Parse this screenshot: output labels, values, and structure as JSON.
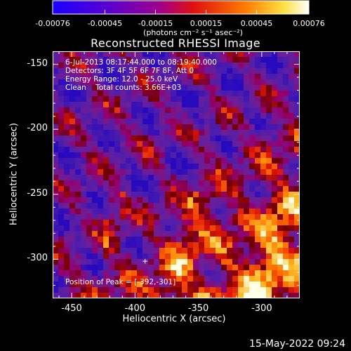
{
  "colorbar": {
    "ticks": [
      "-0.00076",
      "-0.00045",
      "-0.00015",
      "0.00015",
      "0.00045",
      "0.00076"
    ],
    "unit": "(photons cm⁻² s⁻¹ asec⁻²)",
    "colors": [
      "#1a00ff",
      "#6a00c8",
      "#a0008a",
      "#e01010",
      "#ff7a00",
      "#ffe040",
      "#ffffff"
    ]
  },
  "chart_data": {
    "type": "heatmap",
    "title": "Reconstructed RHESSI Image",
    "xlabel": "Heliocentric X (arcsec)",
    "ylabel": "Heliocentric Y (arcsec)",
    "xlim": [
      -465,
      -270
    ],
    "ylim": [
      -330,
      -140
    ],
    "xticks": [
      -450,
      -400,
      -350,
      -300
    ],
    "yticks": [
      -150,
      -200,
      -250,
      -300
    ],
    "zlim": [
      -0.00076,
      0.00076
    ],
    "peak": [
      -392,
      -301
    ],
    "annotations": [
      "6-Jul-2013 08:17:44.000 to 08:19:40.000",
      "Detectors: 3F 4F 5F 6F 7F 8F, Att 0",
      "Energy Range: 12.0 - 25.0 keV",
      "Clean    Total counts: 3.66E+03",
      "Position of Peak = [-392,-301]"
    ]
  },
  "footer": {
    "timestamp": "15-May-2022 09:24"
  }
}
